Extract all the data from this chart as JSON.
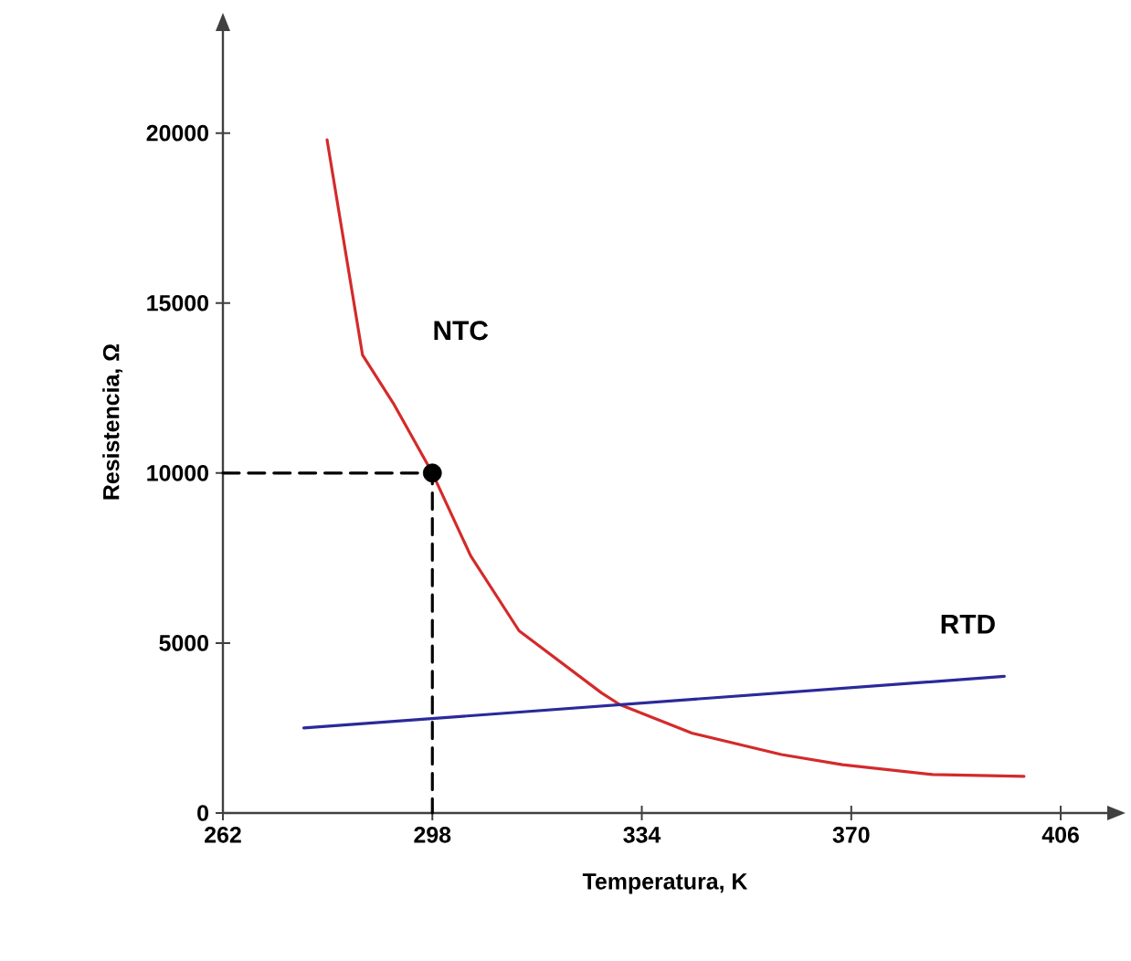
{
  "chart_data": {
    "type": "line",
    "xlabel": "Temperatura, K",
    "ylabel": "Resistencia, Ω",
    "xlim": [
      262,
      414
    ],
    "ylim": [
      0,
      23000
    ],
    "xticks": [
      262,
      298,
      334,
      370,
      406
    ],
    "yticks": [
      0,
      5000,
      10000,
      15000,
      20000
    ],
    "grid": false,
    "marker": "none",
    "line_style": "solid",
    "series": [
      {
        "name": "NTC",
        "color": "#d42a2a",
        "x": [
          279.9,
          286,
          291.3,
          298,
          304.6,
          312.9,
          327.1,
          330.2,
          342.6,
          358,
          368.5,
          384,
          399.7
        ],
        "values": [
          19800,
          13470,
          12050,
          10000,
          7560,
          5360,
          3530,
          3190,
          2350,
          1720,
          1420,
          1130,
          1080
        ]
      },
      {
        "name": "RTD",
        "color": "#2a2a9a",
        "x": [
          275.9,
          396.3
        ],
        "values": [
          2500,
          4020
        ]
      },
      {
        "type": "line",
        "line_style": "dashed",
        "color": "#000000",
        "x": [
          262,
          298,
          298
        ],
        "values": [
          10000,
          10000,
          0
        ]
      },
      {
        "type": "scatter",
        "marker": "circle",
        "color": "#000000",
        "x": [
          298
        ],
        "values": [
          10000
        ]
      }
    ]
  }
}
